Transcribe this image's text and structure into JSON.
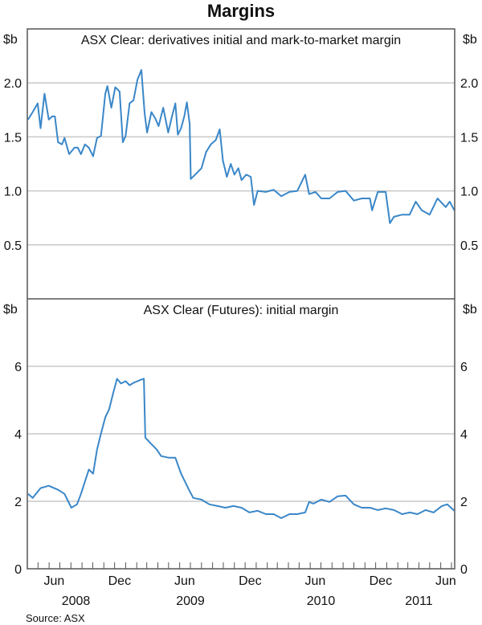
{
  "title": "Margins",
  "source": "Source: ASX",
  "x_axis": {
    "type": "date",
    "range": [
      "2008-04-01",
      "2011-07-10"
    ],
    "month_labels": [
      {
        "label": "Jun",
        "date": "2008-06-15"
      },
      {
        "label": "Dec",
        "date": "2008-12-15"
      },
      {
        "label": "Jun",
        "date": "2009-06-15"
      },
      {
        "label": "Dec",
        "date": "2009-12-15"
      },
      {
        "label": "Jun",
        "date": "2010-06-15"
      },
      {
        "label": "Dec",
        "date": "2010-12-15"
      },
      {
        "label": "Jun",
        "date": "2011-06-15"
      }
    ],
    "year_labels": [
      {
        "label": "2008",
        "date": "2008-08-15"
      },
      {
        "label": "2009",
        "date": "2009-07-01"
      },
      {
        "label": "2010",
        "date": "2010-07-01"
      },
      {
        "label": "2011",
        "date": "2011-04-01"
      }
    ],
    "tick_interval": "month"
  },
  "colors": {
    "line": "#3a87c8",
    "grid": "#c8c8c8",
    "frame": "#555555"
  },
  "chart_data": [
    {
      "type": "line",
      "title": "ASX Clear: derivatives initial and mark-to-market margin",
      "ylabel": "$b",
      "ylim": [
        0,
        2.5
      ],
      "yticks": [
        0.5,
        1.0,
        1.5,
        2.0
      ],
      "ytick_labels": [
        "0.5",
        "1.0",
        "1.5",
        "2.0"
      ],
      "grid": true,
      "series": [
        {
          "points": [
            [
              "2008-04-03",
              1.66
            ],
            [
              "2008-04-16",
              1.73
            ],
            [
              "2008-04-30",
              1.81
            ],
            [
              "2008-05-08",
              1.58
            ],
            [
              "2008-05-19",
              1.9
            ],
            [
              "2008-05-31",
              1.66
            ],
            [
              "2008-06-09",
              1.69
            ],
            [
              "2008-06-17",
              1.69
            ],
            [
              "2008-06-26",
              1.45
            ],
            [
              "2008-07-07",
              1.43
            ],
            [
              "2008-07-14",
              1.49
            ],
            [
              "2008-07-27",
              1.34
            ],
            [
              "2008-08-11",
              1.4
            ],
            [
              "2008-08-20",
              1.4
            ],
            [
              "2008-08-29",
              1.34
            ],
            [
              "2008-09-09",
              1.43
            ],
            [
              "2008-09-20",
              1.4
            ],
            [
              "2008-10-02",
              1.32
            ],
            [
              "2008-10-13",
              1.49
            ],
            [
              "2008-10-24",
              1.51
            ],
            [
              "2008-11-05",
              1.9
            ],
            [
              "2008-11-11",
              1.97
            ],
            [
              "2008-11-22",
              1.77
            ],
            [
              "2008-12-03",
              1.96
            ],
            [
              "2008-12-15",
              1.92
            ],
            [
              "2008-12-24",
              1.45
            ],
            [
              "2009-01-01",
              1.51
            ],
            [
              "2009-01-12",
              1.81
            ],
            [
              "2009-01-23",
              1.84
            ],
            [
              "2009-02-03",
              2.03
            ],
            [
              "2009-02-14",
              2.12
            ],
            [
              "2009-02-23",
              1.72
            ],
            [
              "2009-03-02",
              1.54
            ],
            [
              "2009-03-14",
              1.73
            ],
            [
              "2009-03-25",
              1.67
            ],
            [
              "2009-04-03",
              1.6
            ],
            [
              "2009-04-16",
              1.77
            ],
            [
              "2009-04-30",
              1.54
            ],
            [
              "2009-05-09",
              1.67
            ],
            [
              "2009-05-20",
              1.81
            ],
            [
              "2009-05-27",
              1.52
            ],
            [
              "2009-06-05",
              1.58
            ],
            [
              "2009-06-14",
              1.69
            ],
            [
              "2009-06-21",
              1.82
            ],
            [
              "2009-06-29",
              1.62
            ],
            [
              "2009-07-02",
              1.11
            ],
            [
              "2009-07-20",
              1.17
            ],
            [
              "2009-08-01",
              1.21
            ],
            [
              "2009-08-14",
              1.36
            ],
            [
              "2009-08-27",
              1.43
            ],
            [
              "2009-09-10",
              1.47
            ],
            [
              "2009-09-21",
              1.57
            ],
            [
              "2009-09-30",
              1.28
            ],
            [
              "2009-10-11",
              1.13
            ],
            [
              "2009-10-22",
              1.25
            ],
            [
              "2009-11-01",
              1.15
            ],
            [
              "2009-11-12",
              1.21
            ],
            [
              "2009-11-21",
              1.1
            ],
            [
              "2009-12-04",
              1.15
            ],
            [
              "2009-12-17",
              1.13
            ],
            [
              "2009-12-26",
              0.87
            ],
            [
              "2010-01-05",
              1.0
            ],
            [
              "2010-01-28",
              0.99
            ],
            [
              "2010-02-19",
              1.01
            ],
            [
              "2010-03-12",
              0.95
            ],
            [
              "2010-04-04",
              0.99
            ],
            [
              "2010-04-26",
              1.0
            ],
            [
              "2010-05-18",
              1.15
            ],
            [
              "2010-05-29",
              0.97
            ],
            [
              "2010-06-16",
              0.99
            ],
            [
              "2010-07-02",
              0.93
            ],
            [
              "2010-07-25",
              0.93
            ],
            [
              "2010-08-17",
              0.99
            ],
            [
              "2010-09-08",
              1.0
            ],
            [
              "2010-10-01",
              0.91
            ],
            [
              "2010-10-23",
              0.93
            ],
            [
              "2010-11-15",
              0.93
            ],
            [
              "2010-11-21",
              0.82
            ],
            [
              "2010-12-07",
              0.99
            ],
            [
              "2010-12-29",
              0.99
            ],
            [
              "2011-01-10",
              0.7
            ],
            [
              "2011-01-21",
              0.76
            ],
            [
              "2011-02-13",
              0.78
            ],
            [
              "2011-03-06",
              0.78
            ],
            [
              "2011-03-23",
              0.9
            ],
            [
              "2011-04-09",
              0.82
            ],
            [
              "2011-05-01",
              0.78
            ],
            [
              "2011-05-23",
              0.93
            ],
            [
              "2011-06-15",
              0.85
            ],
            [
              "2011-06-26",
              0.9
            ],
            [
              "2011-07-09",
              0.82
            ]
          ]
        }
      ]
    },
    {
      "type": "line",
      "title": "ASX Clear (Futures): initial margin",
      "ylabel": "$b",
      "ylim": [
        0,
        8
      ],
      "yticks": [
        0,
        2,
        4,
        6
      ],
      "ytick_labels": [
        "0",
        "2",
        "4",
        "6"
      ],
      "grid": true,
      "series": [
        {
          "points": [
            [
              "2008-04-03",
              2.22
            ],
            [
              "2008-04-16",
              2.1
            ],
            [
              "2008-05-08",
              2.39
            ],
            [
              "2008-05-31",
              2.46
            ],
            [
              "2008-06-26",
              2.34
            ],
            [
              "2008-07-14",
              2.22
            ],
            [
              "2008-08-02",
              1.81
            ],
            [
              "2008-08-18",
              1.91
            ],
            [
              "2008-08-29",
              2.22
            ],
            [
              "2008-09-09",
              2.58
            ],
            [
              "2008-09-20",
              2.94
            ],
            [
              "2008-10-02",
              2.82
            ],
            [
              "2008-10-13",
              3.53
            ],
            [
              "2008-10-24",
              4.01
            ],
            [
              "2008-11-05",
              4.49
            ],
            [
              "2008-11-16",
              4.73
            ],
            [
              "2008-11-27",
              5.2
            ],
            [
              "2008-12-08",
              5.63
            ],
            [
              "2008-12-19",
              5.49
            ],
            [
              "2009-01-01",
              5.56
            ],
            [
              "2009-01-12",
              5.44
            ],
            [
              "2009-01-23",
              5.51
            ],
            [
              "2009-02-03",
              5.56
            ],
            [
              "2009-02-14",
              5.61
            ],
            [
              "2009-02-21",
              5.63
            ],
            [
              "2009-02-25",
              3.89
            ],
            [
              "2009-03-07",
              3.77
            ],
            [
              "2009-03-29",
              3.53
            ],
            [
              "2009-04-10",
              3.34
            ],
            [
              "2009-05-02",
              3.29
            ],
            [
              "2009-05-20",
              3.29
            ],
            [
              "2009-06-05",
              2.82
            ],
            [
              "2009-06-16",
              2.58
            ],
            [
              "2009-06-27",
              2.34
            ],
            [
              "2009-07-09",
              2.1
            ],
            [
              "2009-08-01",
              2.05
            ],
            [
              "2009-08-23",
              1.91
            ],
            [
              "2009-09-15",
              1.86
            ],
            [
              "2009-10-07",
              1.81
            ],
            [
              "2009-10-29",
              1.86
            ],
            [
              "2009-11-21",
              1.81
            ],
            [
              "2009-12-13",
              1.67
            ],
            [
              "2010-01-05",
              1.72
            ],
            [
              "2010-01-28",
              1.62
            ],
            [
              "2010-02-19",
              1.62
            ],
            [
              "2010-03-12",
              1.5
            ],
            [
              "2010-04-04",
              1.62
            ],
            [
              "2010-04-26",
              1.62
            ],
            [
              "2010-05-18",
              1.67
            ],
            [
              "2010-05-29",
              1.98
            ],
            [
              "2010-06-10",
              1.93
            ],
            [
              "2010-07-02",
              2.05
            ],
            [
              "2010-07-25",
              1.98
            ],
            [
              "2010-08-17",
              2.15
            ],
            [
              "2010-09-08",
              2.17
            ],
            [
              "2010-10-01",
              1.91
            ],
            [
              "2010-10-23",
              1.81
            ],
            [
              "2010-11-15",
              1.81
            ],
            [
              "2010-12-07",
              1.74
            ],
            [
              "2010-12-29",
              1.79
            ],
            [
              "2011-01-21",
              1.74
            ],
            [
              "2011-02-13",
              1.62
            ],
            [
              "2011-03-06",
              1.67
            ],
            [
              "2011-03-28",
              1.62
            ],
            [
              "2011-04-20",
              1.74
            ],
            [
              "2011-05-12",
              1.67
            ],
            [
              "2011-06-04",
              1.86
            ],
            [
              "2011-06-19",
              1.91
            ],
            [
              "2011-07-09",
              1.72
            ]
          ]
        }
      ]
    }
  ]
}
